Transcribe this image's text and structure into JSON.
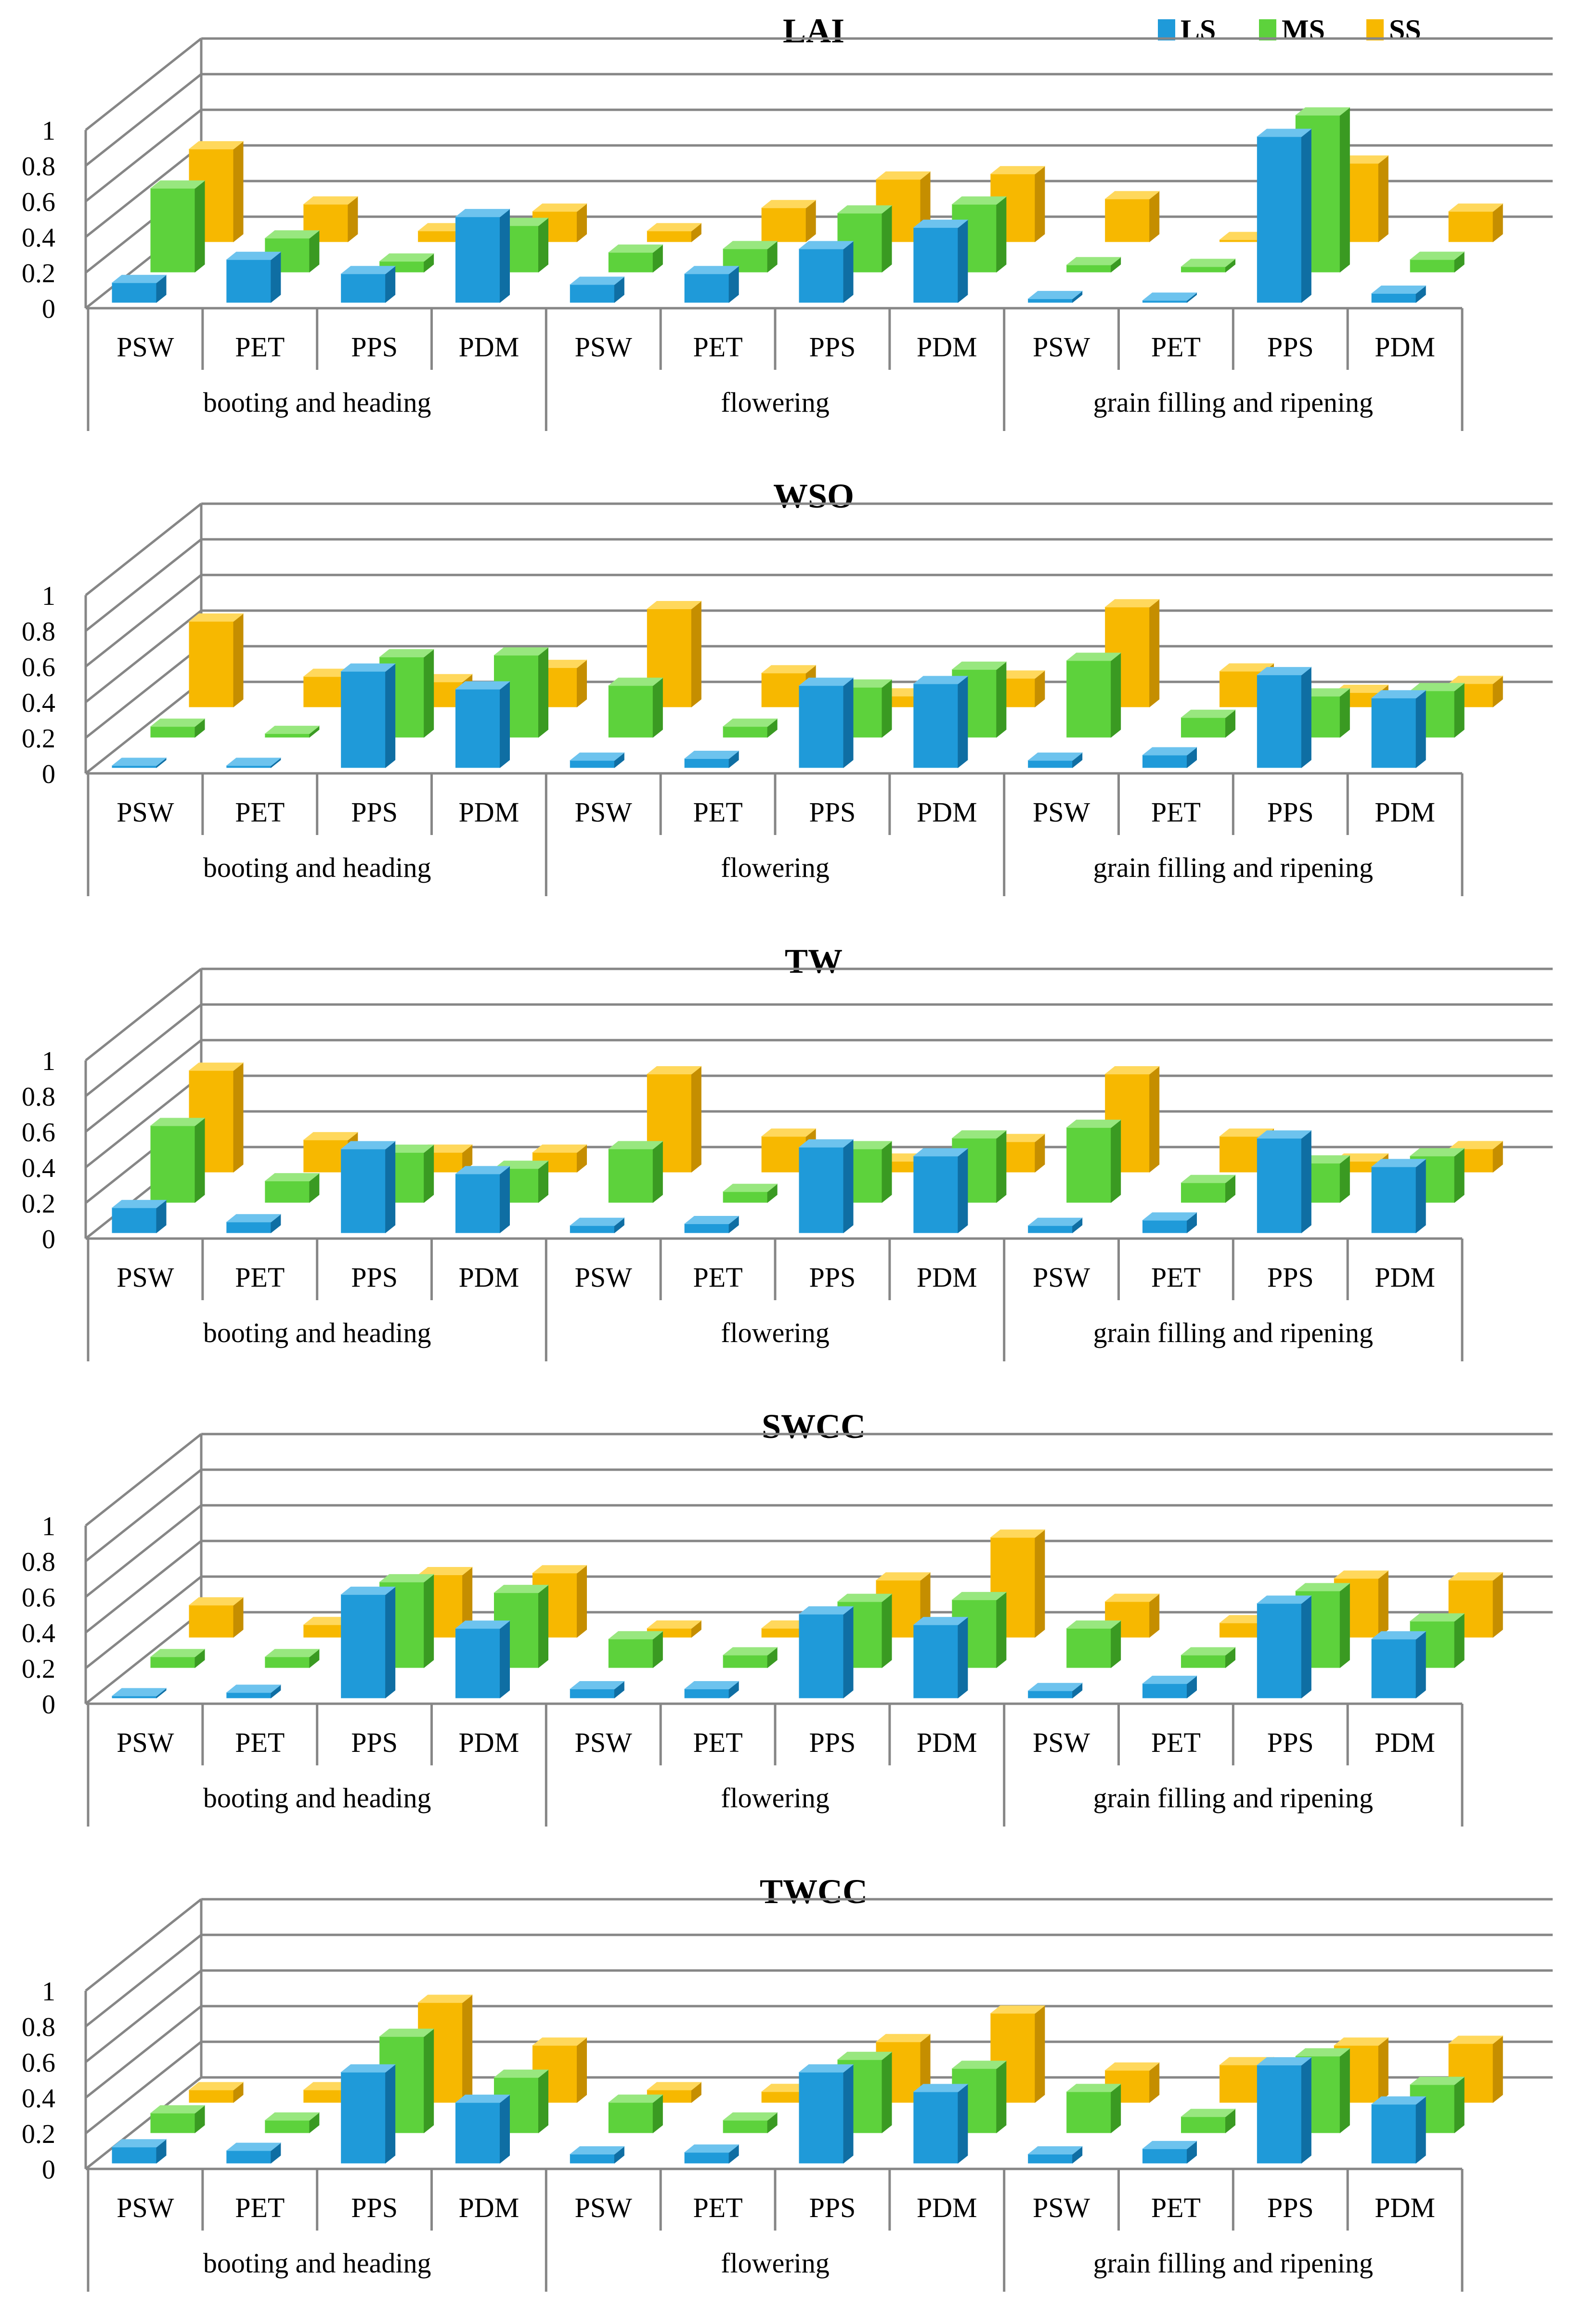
{
  "legend": {
    "items": [
      {
        "label": "LS",
        "color": "#1F9AD9",
        "side": "#0F6EA3",
        "top": "#6DC3EE"
      },
      {
        "label": "MS",
        "color": "#5DD23C",
        "side": "#3A9A22",
        "top": "#98E77F"
      },
      {
        "label": "SS",
        "color": "#F7B800",
        "side": "#C58E00",
        "top": "#FFD85C"
      }
    ]
  },
  "chart_data": [
    {
      "type": "bar",
      "title": "LAI",
      "ylim": [
        0,
        1
      ],
      "yticks": [
        "0",
        "0.2",
        "0.4",
        "0.6",
        "0.8",
        "1"
      ],
      "stages": [
        "booting and heading",
        "flowering",
        "grain filling and ripening"
      ],
      "categories": [
        "PSW",
        "PET",
        "PPS",
        "PDM",
        "PSW",
        "PET",
        "PPS",
        "PDM",
        "PSW",
        "PET",
        "PPS",
        "PDM"
      ],
      "series": [
        {
          "name": "LS",
          "values": [
            0.11,
            0.24,
            0.16,
            0.48,
            0.1,
            0.16,
            0.3,
            0.42,
            0.02,
            0.0,
            0.93,
            0.05
          ]
        },
        {
          "name": "MS",
          "values": [
            0.47,
            0.19,
            0.06,
            0.26,
            0.11,
            0.13,
            0.33,
            0.38,
            0.04,
            0.03,
            0.88,
            0.07
          ]
        },
        {
          "name": "SS",
          "values": [
            0.52,
            0.21,
            0.06,
            0.17,
            0.06,
            0.19,
            0.35,
            0.38,
            0.24,
            0.0,
            0.44,
            0.17
          ]
        }
      ]
    },
    {
      "type": "bar",
      "title": "WSO",
      "ylim": [
        0,
        1
      ],
      "yticks": [
        "0",
        "0.2",
        "0.4",
        "0.6",
        "0.8",
        "1"
      ],
      "stages": [
        "booting and heading",
        "flowering",
        "grain filling and ripening"
      ],
      "categories": [
        "PSW",
        "PET",
        "PPS",
        "PDM",
        "PSW",
        "PET",
        "PPS",
        "PDM",
        "PSW",
        "PET",
        "PPS",
        "PDM"
      ],
      "series": [
        {
          "name": "LS",
          "values": [
            0.01,
            0.01,
            0.54,
            0.44,
            0.04,
            0.05,
            0.46,
            0.47,
            0.04,
            0.07,
            0.52,
            0.39
          ]
        },
        {
          "name": "MS",
          "values": [
            0.06,
            0.02,
            0.45,
            0.46,
            0.29,
            0.06,
            0.28,
            0.38,
            0.43,
            0.11,
            0.23,
            0.26
          ]
        },
        {
          "name": "SS",
          "values": [
            0.48,
            0.17,
            0.14,
            0.22,
            0.55,
            0.19,
            0.06,
            0.16,
            0.56,
            0.2,
            0.08,
            0.13
          ]
        }
      ]
    },
    {
      "type": "bar",
      "title": "TW",
      "ylim": [
        0,
        1
      ],
      "yticks": [
        "0",
        "0.2",
        "0.4",
        "0.6",
        "0.8",
        "1"
      ],
      "stages": [
        "booting and heading",
        "flowering",
        "grain filling and ripening"
      ],
      "categories": [
        "PSW",
        "PET",
        "PPS",
        "PDM",
        "PSW",
        "PET",
        "PPS",
        "PDM",
        "PSW",
        "PET",
        "PPS",
        "PDM"
      ],
      "series": [
        {
          "name": "LS",
          "values": [
            0.14,
            0.06,
            0.47,
            0.33,
            0.04,
            0.05,
            0.48,
            0.43,
            0.04,
            0.07,
            0.53,
            0.37
          ]
        },
        {
          "name": "MS",
          "values": [
            0.43,
            0.12,
            0.28,
            0.19,
            0.3,
            0.06,
            0.3,
            0.36,
            0.42,
            0.11,
            0.22,
            0.26
          ]
        },
        {
          "name": "SS",
          "values": [
            0.57,
            0.18,
            0.11,
            0.11,
            0.55,
            0.2,
            0.06,
            0.17,
            0.55,
            0.2,
            0.06,
            0.13
          ]
        }
      ]
    },
    {
      "type": "bar",
      "title": "SWCC",
      "ylim": [
        0,
        1
      ],
      "yticks": [
        "0",
        "0.2",
        "0.4",
        "0.6",
        "0.8",
        "1"
      ],
      "stages": [
        "booting and heading",
        "flowering",
        "grain filling and ripening"
      ],
      "categories": [
        "PSW",
        "PET",
        "PPS",
        "PDM",
        "PSW",
        "PET",
        "PPS",
        "PDM",
        "PSW",
        "PET",
        "PPS",
        "PDM"
      ],
      "series": [
        {
          "name": "LS",
          "values": [
            0.0,
            0.03,
            0.58,
            0.39,
            0.05,
            0.05,
            0.47,
            0.41,
            0.04,
            0.08,
            0.53,
            0.33
          ]
        },
        {
          "name": "MS",
          "values": [
            0.06,
            0.06,
            0.48,
            0.42,
            0.16,
            0.07,
            0.37,
            0.38,
            0.22,
            0.07,
            0.43,
            0.26
          ]
        },
        {
          "name": "SS",
          "values": [
            0.18,
            0.07,
            0.35,
            0.36,
            0.05,
            0.05,
            0.32,
            0.56,
            0.2,
            0.08,
            0.33,
            0.32
          ]
        }
      ]
    },
    {
      "type": "bar",
      "title": "TWCC",
      "ylim": [
        0,
        1
      ],
      "yticks": [
        "0",
        "0.2",
        "0.4",
        "0.6",
        "0.8",
        "1"
      ],
      "stages": [
        "booting and heading",
        "flowering",
        "grain filling and ripening"
      ],
      "categories": [
        "PSW",
        "PET",
        "PPS",
        "PDM",
        "PSW",
        "PET",
        "PPS",
        "PDM",
        "PSW",
        "PET",
        "PPS",
        "PDM"
      ],
      "series": [
        {
          "name": "LS",
          "values": [
            0.09,
            0.07,
            0.51,
            0.34,
            0.05,
            0.06,
            0.51,
            0.4,
            0.05,
            0.08,
            0.55,
            0.33
          ]
        },
        {
          "name": "MS",
          "values": [
            0.11,
            0.07,
            0.54,
            0.31,
            0.17,
            0.07,
            0.41,
            0.36,
            0.23,
            0.09,
            0.43,
            0.27
          ]
        },
        {
          "name": "SS",
          "values": [
            0.07,
            0.07,
            0.56,
            0.32,
            0.07,
            0.06,
            0.34,
            0.5,
            0.18,
            0.21,
            0.32,
            0.33
          ]
        }
      ]
    }
  ]
}
